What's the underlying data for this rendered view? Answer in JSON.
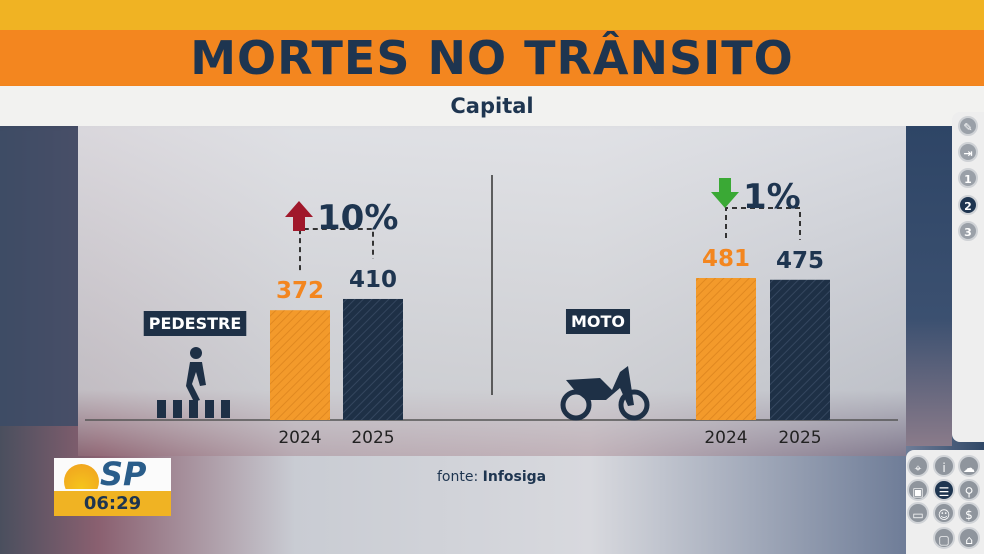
{
  "header": {
    "title": "MORTES NO TRÂNSITO",
    "subtitle": "Capital"
  },
  "chart_data": [
    {
      "type": "bar",
      "category": "PEDESTRE",
      "icon": "pedestrian-crossing-icon",
      "categories": [
        "2024",
        "2025"
      ],
      "values": [
        372,
        410
      ],
      "colors": [
        "#f39a2b",
        "#1e3046"
      ],
      "change": {
        "direction": "up",
        "label": "10%",
        "color": "#a0182b"
      }
    },
    {
      "type": "bar",
      "category": "MOTO",
      "icon": "motorcycle-icon",
      "categories": [
        "2024",
        "2025"
      ],
      "values": [
        481,
        475
      ],
      "colors": [
        "#f39a2b",
        "#1e3046"
      ],
      "change": {
        "direction": "down",
        "label": "1%",
        "color": "#3aa935"
      }
    }
  ],
  "source": {
    "prefix": "fonte:",
    "name": "Infosiga"
  },
  "program": {
    "logo": "SP",
    "time": "06:29"
  },
  "side_menu": {
    "items": [
      "pencil-icon",
      "exit-icon",
      "1",
      "2",
      "3"
    ],
    "active": "2"
  },
  "apps_grid": {
    "items": [
      "camera-icon",
      "info-icon",
      "cloud-icon",
      "bus-icon",
      "list-icon",
      "runner-icon",
      "money-icon",
      "theater-icon",
      "dollar-icon",
      "",
      "chat-icon",
      "home-icon"
    ],
    "active": "list-icon"
  }
}
